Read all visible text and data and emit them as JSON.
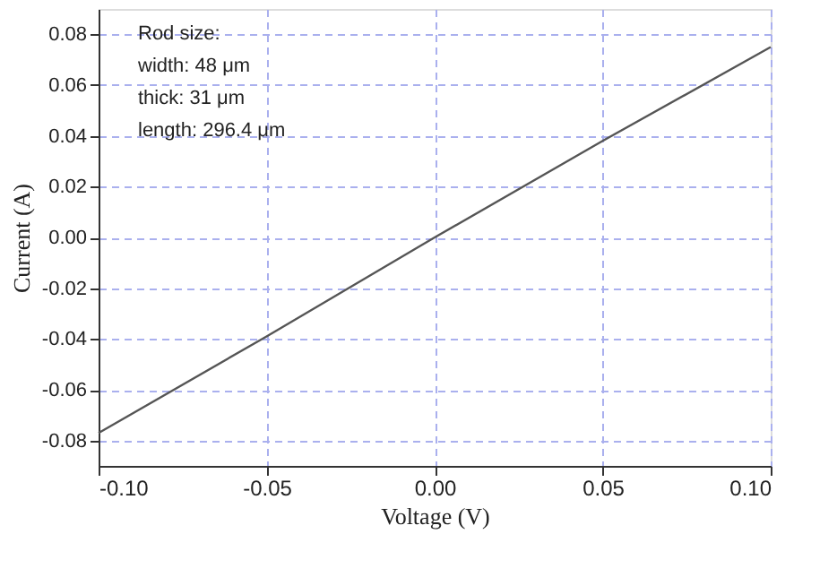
{
  "chart_data": {
    "type": "line",
    "xlabel": "Voltage (V)",
    "ylabel": "Current (A)",
    "x": [
      -0.1,
      -0.05,
      0.0,
      0.05,
      0.1
    ],
    "series": [
      {
        "color": "#555555",
        "values": [
          -0.077,
          -0.039,
          0.0,
          0.038,
          0.075
        ]
      }
    ],
    "xlim": [
      -0.1,
      0.1
    ],
    "xticks": [
      {
        "value": -0.1,
        "label": "-0.10"
      },
      {
        "value": -0.05,
        "label": "-0.05"
      },
      {
        "value": 0,
        "label": "0.00"
      },
      {
        "value": 0.05,
        "label": "0.05"
      },
      {
        "value": 0.1,
        "label": "0.10"
      }
    ],
    "ylim": [
      -0.09,
      0.09
    ],
    "yticks": [
      {
        "value": -0.08,
        "label": "-0.08"
      },
      {
        "value": -0.06,
        "label": "-0.06"
      },
      {
        "value": -0.04,
        "label": "-0.04"
      },
      {
        "value": -0.02,
        "label": "-0.02"
      },
      {
        "value": 0,
        "label": "0.00"
      },
      {
        "value": 0.02,
        "label": "0.02"
      },
      {
        "value": 0.04,
        "label": "0.04"
      },
      {
        "value": 0.06,
        "label": "0.06"
      },
      {
        "value": 0.08,
        "label": "0.08"
      }
    ],
    "grid": true,
    "marker": "none",
    "line_style": "solid",
    "annotations": [
      "Rod size:",
      "width: 48 μm",
      "thick: 31 μm",
      "length: 296.4 μm"
    ]
  }
}
